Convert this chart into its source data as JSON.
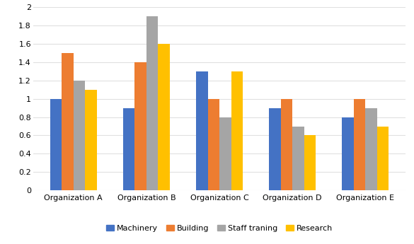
{
  "organizations": [
    "Organization A",
    "Organization B",
    "Organization C",
    "Organization D",
    "Organization E"
  ],
  "categories": [
    "Machinery",
    "Building",
    "Staff traning",
    "Research"
  ],
  "values": {
    "Machinery": [
      1.0,
      0.9,
      1.3,
      0.9,
      0.8
    ],
    "Building": [
      1.5,
      1.4,
      1.0,
      1.0,
      1.0
    ],
    "Staff traning": [
      1.2,
      1.9,
      0.8,
      0.7,
      0.9
    ],
    "Research": [
      1.1,
      1.6,
      1.3,
      0.6,
      0.7
    ]
  },
  "colors": {
    "Machinery": "#4472C4",
    "Building": "#ED7D31",
    "Staff traning": "#A5A5A5",
    "Research": "#FFC000"
  },
  "ylim": [
    0,
    2.0
  ],
  "ytick_labels": [
    "0",
    "0.2",
    "0.4",
    "0.6",
    "0.8",
    "1",
    "1.2",
    "1.4",
    "1.6",
    "1.8",
    "2"
  ],
  "ytick_values": [
    0.0,
    0.2,
    0.4,
    0.6,
    0.8,
    1.0,
    1.2,
    1.4,
    1.6,
    1.8,
    2.0
  ],
  "background_color": "#FFFFFF",
  "grid_color": "#E0E0E0",
  "bar_width": 0.16,
  "figsize": [
    5.85,
    3.45
  ],
  "dpi": 100
}
